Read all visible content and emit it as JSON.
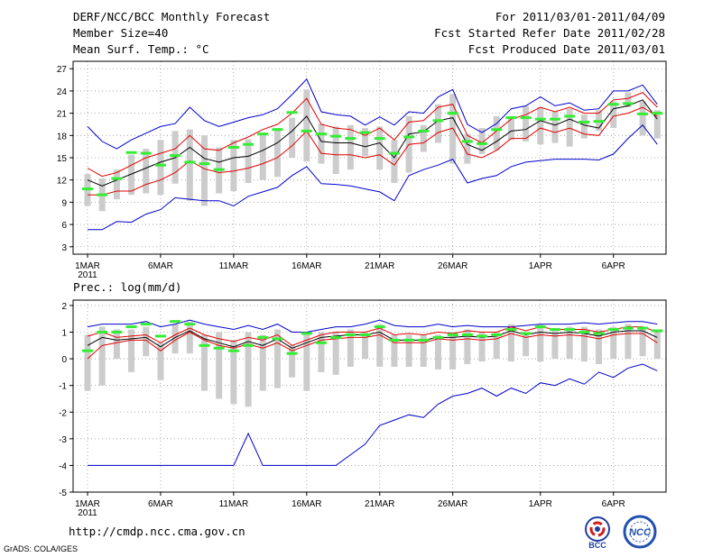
{
  "header": {
    "title": "DERF/NCC/BCC Monthly Forecast",
    "member_size": "Member Size=40",
    "variable": "Mean Surf. Temp.: °C",
    "forecast_period": "For 2011/03/01-2011/04/09",
    "started_refer": "Fcst Started Refer Date 2011/02/28",
    "produced": "Fcst Produced Date 2011/03/01"
  },
  "footer": {
    "url": "http://cmdp.ncc.cma.gov.cn",
    "credit": "GrADS: COLA/IGES",
    "logo_bcc": "BCC",
    "logo_ncc": "NCC"
  },
  "colors": {
    "ensemble_mean": "#000000",
    "std_band": "#e00000",
    "extremes": "#0000cc",
    "member_box": "#cccccc",
    "median_mark": "#33ee33",
    "grid": "#999999"
  },
  "chart_data": [
    {
      "type": "line",
      "title": "Mean Surf. Temp.: °C",
      "days": 40,
      "x_ticks": [
        {
          "day": 1,
          "label": "1MAR",
          "year": "2011"
        },
        {
          "day": 6,
          "label": "6MAR"
        },
        {
          "day": 11,
          "label": "11MAR"
        },
        {
          "day": 16,
          "label": "16MAR"
        },
        {
          "day": 21,
          "label": "21MAR"
        },
        {
          "day": 26,
          "label": "26MAR"
        },
        {
          "day": 32,
          "label": "1APR"
        },
        {
          "day": 37,
          "label": "6APR"
        }
      ],
      "y_ticks": [
        3,
        6,
        9,
        12,
        15,
        18,
        21,
        24,
        27
      ],
      "ylim": [
        2,
        28
      ],
      "grid": true,
      "series": [
        {
          "name": "max",
          "color_key": "extremes",
          "values": [
            19.2,
            17.2,
            16.2,
            17.4,
            18.3,
            19.2,
            19.6,
            21.8,
            20.0,
            19.2,
            19.8,
            20.4,
            20.8,
            21.6,
            23.5,
            25.6,
            21.2,
            20.8,
            20.6,
            19.4,
            20.5,
            19.4,
            21.2,
            21.0,
            23.2,
            24.2,
            19.5,
            18.4,
            19.6,
            21.6,
            22.0,
            23.2,
            22.0,
            22.4,
            21.4,
            21.6,
            24.0,
            24.0,
            24.8,
            22.2
          ]
        },
        {
          "name": "mean_plus_std",
          "color_key": "std_band",
          "values": [
            13.6,
            12.5,
            13.0,
            14.0,
            15.0,
            15.6,
            16.2,
            18.0,
            16.2,
            16.0,
            17.0,
            17.8,
            18.8,
            19.5,
            21.0,
            23.0,
            19.5,
            19.0,
            18.8,
            18.0,
            19.0,
            17.4,
            19.8,
            20.0,
            21.8,
            22.2,
            18.0,
            17.0,
            18.6,
            20.2,
            20.8,
            21.8,
            21.2,
            21.8,
            21.0,
            21.0,
            22.8,
            23.0,
            23.8,
            21.8
          ]
        },
        {
          "name": "ensemble_mean",
          "color_key": "ensemble_mean",
          "values": [
            12.0,
            11.2,
            12.0,
            12.8,
            13.6,
            14.4,
            15.0,
            16.4,
            14.9,
            14.4,
            15.0,
            15.2,
            16.0,
            17.0,
            18.6,
            20.6,
            17.2,
            17.0,
            17.0,
            16.5,
            17.0,
            15.0,
            18.2,
            18.5,
            20.0,
            20.4,
            16.8,
            16.0,
            17.2,
            18.6,
            18.8,
            20.0,
            19.4,
            20.2,
            19.4,
            19.0,
            21.6,
            22.0,
            22.8,
            20.2
          ]
        },
        {
          "name": "mean_minus_std",
          "color_key": "std_band",
          "values": [
            10.0,
            10.0,
            10.5,
            10.5,
            11.4,
            12.0,
            13.0,
            14.6,
            13.5,
            13.0,
            13.2,
            13.6,
            14.2,
            15.0,
            16.6,
            18.6,
            15.6,
            15.4,
            15.4,
            15.0,
            15.4,
            14.0,
            16.8,
            17.0,
            18.4,
            19.0,
            15.5,
            15.0,
            16.0,
            17.6,
            17.6,
            19.0,
            18.4,
            19.0,
            18.2,
            18.0,
            20.6,
            21.0,
            21.8,
            20.6
          ]
        },
        {
          "name": "min",
          "color_key": "extremes",
          "values": [
            5.3,
            5.3,
            6.4,
            6.3,
            7.4,
            8.0,
            9.6,
            9.4,
            9.2,
            9.2,
            8.5,
            9.8,
            10.4,
            11.0,
            12.6,
            13.8,
            11.5,
            11.4,
            11.2,
            10.8,
            10.4,
            9.2,
            12.6,
            13.4,
            14.0,
            14.8,
            11.6,
            12.2,
            12.6,
            13.8,
            14.4,
            14.6,
            14.8,
            14.8,
            14.8,
            14.7,
            15.5,
            17.6,
            19.4,
            16.8
          ]
        }
      ],
      "boxes": {
        "low": [
          8.5,
          7.8,
          9.4,
          10.0,
          10.2,
          10.0,
          11.5,
          9.2,
          8.5,
          10.2,
          10.5,
          11.6,
          12.0,
          12.4,
          15.0,
          14.5,
          14.2,
          12.8,
          13.4,
          15.2,
          13.4,
          11.6,
          13.0,
          15.8,
          17.0,
          14.2,
          14.2,
          15.5,
          16.0,
          17.4,
          17.2,
          16.8,
          17.0,
          16.5,
          17.6,
          18.6,
          19.0,
          21.8,
          18.0,
          17.6
        ],
        "high": [
          12.8,
          12.2,
          13.4,
          15.4,
          16.2,
          17.4,
          18.6,
          18.8,
          18.0,
          16.4,
          17.4,
          17.5,
          18.4,
          19.0,
          20.4,
          24.2,
          19.6,
          19.2,
          19.4,
          19.0,
          19.2,
          17.4,
          20.6,
          19.4,
          22.2,
          23.6,
          18.2,
          19.0,
          20.6,
          20.6,
          22.0,
          21.8,
          21.2,
          21.6,
          20.8,
          21.4,
          22.6,
          23.8,
          22.6,
          21.4
        ]
      },
      "medians": [
        10.8,
        10.0,
        12.2,
        15.7,
        15.6,
        14.0,
        15.3,
        14.4,
        14.2,
        13.4,
        16.4,
        16.8,
        18.2,
        18.8,
        21.1,
        18.6,
        18.2,
        17.9,
        17.6,
        18.4,
        17.6,
        15.6,
        17.8,
        18.6,
        20.0,
        21.0,
        17.2,
        16.9,
        18.8,
        20.4,
        20.4,
        20.2,
        20.2,
        20.6,
        19.8,
        19.9,
        22.2,
        22.3,
        20.9,
        21.0
      ]
    },
    {
      "type": "line",
      "title": "Prec.: log(mm/d)",
      "days": 40,
      "x_ticks": [
        {
          "day": 1,
          "label": "1MAR",
          "year": "2011"
        },
        {
          "day": 6,
          "label": "6MAR"
        },
        {
          "day": 11,
          "label": "11MAR"
        },
        {
          "day": 16,
          "label": "16MAR"
        },
        {
          "day": 21,
          "label": "21MAR"
        },
        {
          "day": 26,
          "label": "26MAR"
        },
        {
          "day": 32,
          "label": "1APR"
        },
        {
          "day": 37,
          "label": "6APR"
        }
      ],
      "y_ticks": [
        -5,
        -4,
        -3,
        -2,
        -1,
        0,
        1,
        2
      ],
      "ylim": [
        -5,
        2.2
      ],
      "grid": true,
      "series": [
        {
          "name": "max",
          "color_key": "extremes",
          "values": [
            1.2,
            1.3,
            1.3,
            1.3,
            1.4,
            1.2,
            1.3,
            1.45,
            1.3,
            1.2,
            1.1,
            1.25,
            1.1,
            1.3,
            1.0,
            1.0,
            1.1,
            1.2,
            1.2,
            1.3,
            1.45,
            1.25,
            1.2,
            1.2,
            1.3,
            1.2,
            1.25,
            1.2,
            1.2,
            1.2,
            1.25,
            1.3,
            1.3,
            1.3,
            1.35,
            1.3,
            1.35,
            1.4,
            1.4,
            1.3
          ]
        },
        {
          "name": "mean_plus_std",
          "color_key": "std_band",
          "values": [
            0.85,
            1.0,
            0.8,
            0.85,
            0.9,
            0.6,
            0.9,
            1.15,
            0.9,
            0.75,
            0.65,
            0.8,
            0.7,
            0.9,
            0.5,
            0.7,
            0.9,
            1.0,
            1.0,
            1.0,
            1.15,
            0.9,
            0.95,
            0.9,
            1.0,
            0.95,
            1.05,
            1.0,
            1.0,
            1.2,
            1.05,
            1.2,
            1.1,
            1.1,
            1.1,
            1.0,
            1.1,
            1.2,
            1.2,
            1.0
          ]
        },
        {
          "name": "ensemble_mean",
          "color_key": "ensemble_mean",
          "values": [
            0.5,
            0.8,
            0.7,
            0.75,
            0.8,
            0.45,
            0.8,
            1.05,
            0.75,
            0.6,
            0.45,
            0.65,
            0.5,
            0.75,
            0.4,
            0.6,
            0.8,
            0.85,
            0.9,
            0.9,
            1.0,
            0.7,
            0.7,
            0.7,
            0.8,
            0.8,
            0.85,
            0.8,
            0.85,
            1.05,
            0.9,
            1.0,
            0.95,
            1.0,
            0.95,
            0.85,
            1.0,
            1.05,
            1.05,
            0.8
          ]
        },
        {
          "name": "mean_minus_std",
          "color_key": "std_band",
          "values": [
            0.0,
            0.5,
            0.6,
            0.7,
            0.7,
            0.3,
            0.7,
            1.0,
            0.7,
            0.5,
            0.4,
            0.55,
            0.4,
            0.6,
            0.3,
            0.5,
            0.7,
            0.75,
            0.8,
            0.8,
            0.9,
            0.6,
            0.6,
            0.6,
            0.75,
            0.7,
            0.75,
            0.7,
            0.75,
            0.95,
            0.8,
            0.9,
            0.85,
            0.9,
            0.85,
            0.75,
            0.9,
            0.95,
            0.95,
            0.6
          ]
        },
        {
          "name": "min",
          "color_key": "extremes",
          "values": [
            -4.0,
            -4.0,
            -4.0,
            -4.0,
            -4.0,
            -4.0,
            -4.0,
            -4.0,
            -4.0,
            -4.0,
            -4.0,
            -2.8,
            -4.0,
            -4.0,
            -4.0,
            -4.0,
            -4.0,
            -4.0,
            -3.6,
            -3.2,
            -2.5,
            -2.3,
            -2.1,
            -2.2,
            -1.7,
            -1.4,
            -1.3,
            -1.1,
            -1.4,
            -1.1,
            -1.3,
            -0.9,
            -1.0,
            -0.75,
            -0.95,
            -0.5,
            -0.7,
            -0.35,
            -0.2,
            -0.45
          ]
        }
      ],
      "boxes": {
        "low": [
          -1.2,
          -1.0,
          0.0,
          -0.5,
          0.1,
          -0.8,
          0.2,
          0.2,
          -1.2,
          -1.5,
          -1.7,
          -1.8,
          -1.2,
          -1.1,
          -0.7,
          -1.2,
          -0.5,
          -0.6,
          -0.3,
          0.0,
          -0.3,
          -0.3,
          -0.3,
          -0.3,
          -0.4,
          -0.4,
          -0.2,
          -0.1,
          0.0,
          -0.1,
          0.1,
          -0.1,
          0.0,
          0.0,
          -0.1,
          -0.2,
          0.0,
          0.0,
          0.1,
          0.0
        ],
        "high": [
          0.9,
          1.2,
          1.1,
          1.1,
          1.2,
          0.6,
          1.3,
          1.4,
          0.9,
          1.0,
          0.7,
          1.0,
          0.9,
          1.1,
          0.5,
          1.0,
          1.0,
          1.0,
          1.1,
          1.0,
          1.3,
          0.9,
          0.9,
          0.9,
          0.9,
          1.0,
          1.1,
          1.0,
          1.0,
          1.3,
          1.0,
          1.3,
          1.1,
          1.2,
          1.2,
          1.1,
          1.2,
          1.3,
          1.2,
          1.0
        ]
      },
      "medians": [
        0.3,
        1.0,
        1.0,
        1.2,
        1.3,
        0.85,
        1.4,
        1.3,
        0.5,
        0.4,
        0.3,
        0.5,
        0.8,
        0.75,
        0.2,
        0.95,
        0.6,
        0.8,
        0.9,
        0.9,
        1.2,
        0.7,
        0.7,
        0.7,
        0.8,
        0.9,
        0.9,
        0.85,
        0.9,
        1.1,
        0.95,
        1.2,
        1.1,
        1.1,
        1.0,
        0.95,
        1.1,
        1.15,
        1.15,
        1.05
      ]
    }
  ]
}
